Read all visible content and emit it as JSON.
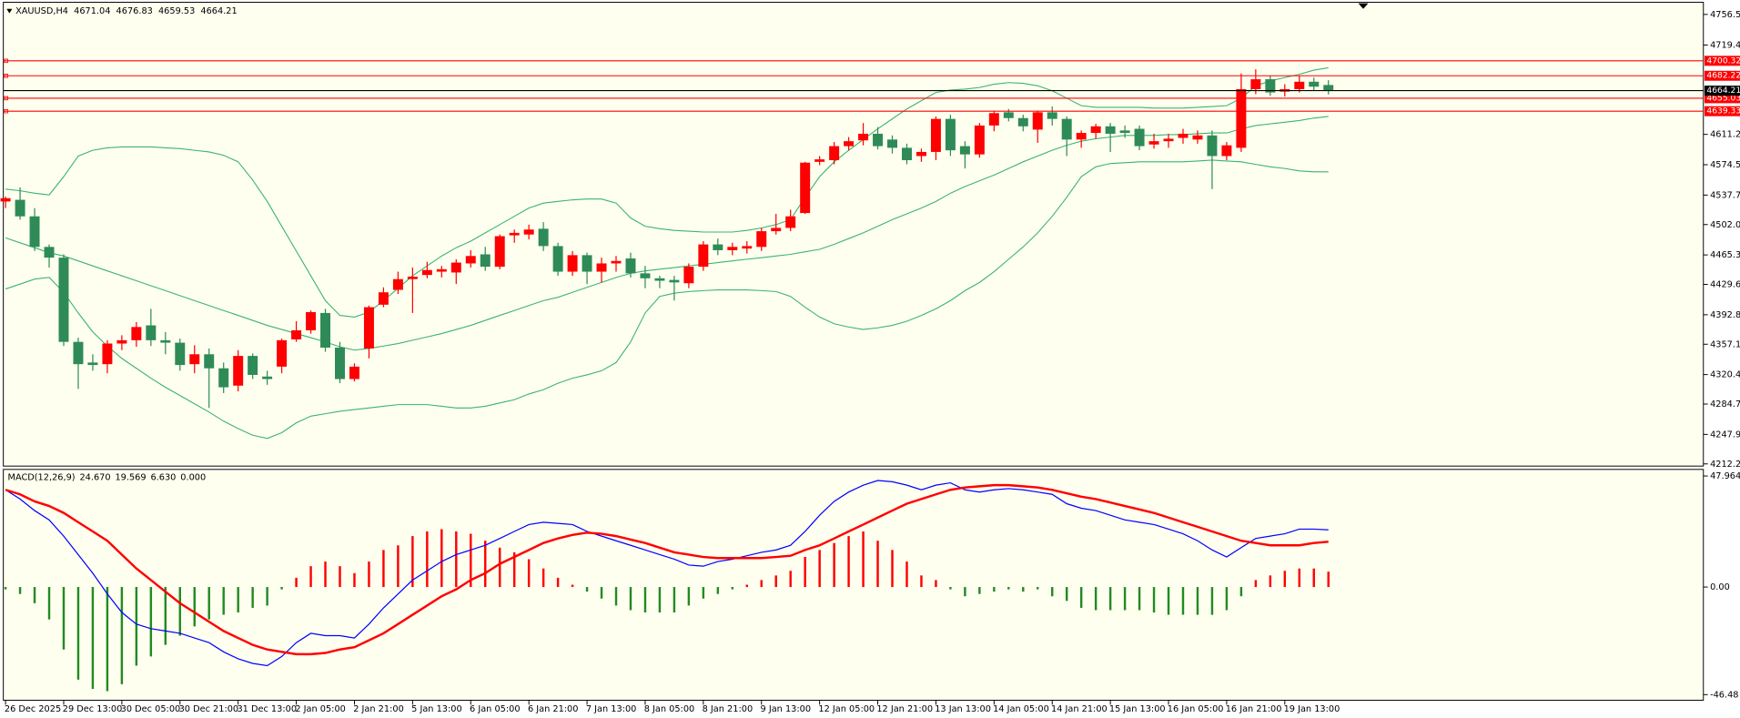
{
  "chart_data": [
    {
      "type": "candlestick",
      "title": "XAUUSD,H4",
      "categories": [
        "26 Dec 2025",
        null,
        null,
        null,
        "29 Dec 13:00",
        null,
        null,
        null,
        "30 Dec 05:00",
        null,
        null,
        null,
        "30 Dec 21:00",
        null,
        null,
        null,
        "31 Dec 13:00",
        null,
        null,
        null,
        "2 Jan 05:00",
        null,
        null,
        null,
        "2 Jan 21:00",
        null,
        null,
        null,
        "5 Jan 13:00",
        null,
        null,
        null,
        "6 Jan 05:00",
        null,
        null,
        null,
        "6 Jan 21:00",
        null,
        null,
        null,
        "7 Jan 13:00",
        null,
        null,
        null,
        "8 Jan 05:00",
        null,
        null,
        null,
        "8 Jan 21:00",
        null,
        null,
        null,
        "9 Jan 13:00",
        null,
        null,
        null,
        "12 Jan 05:00",
        null,
        null,
        null,
        "12 Jan 21:00",
        null,
        null,
        null,
        "13 Jan 13:00",
        null,
        null,
        null,
        "14 Jan 05:00",
        null,
        null,
        null,
        "14 Jan 21:00",
        null,
        null,
        null,
        "15 Jan 13:00",
        null,
        null,
        null,
        "16 Jan 05:00",
        null,
        null,
        null,
        "16 Jan 21:00",
        null,
        null,
        null,
        "19 Jan 13:00",
        null,
        null,
        null
      ],
      "open": [
        4530,
        4532,
        4512,
        4475,
        4462,
        4360,
        4335,
        4333,
        4358,
        4362,
        4380,
        4362,
        4359,
        4333,
        4345,
        4328,
        4307,
        4343,
        4318,
        4330,
        4363,
        4374,
        4395,
        4353,
        4315,
        4352,
        4405,
        4423,
        4436,
        4441,
        4445,
        4444,
        4455,
        4466,
        4451,
        4489,
        4490,
        4497,
        4476,
        4445,
        4465,
        4445,
        4455,
        4461,
        4443,
        4437,
        4435,
        4431,
        4451,
        4478,
        4471,
        4473,
        4475,
        4494,
        4498,
        4516,
        4578,
        4580,
        4597,
        4604,
        4612,
        4605,
        4595,
        4585,
        4590,
        4630,
        4597,
        4587,
        4622,
        4638,
        4631,
        4617,
        4638,
        4630,
        4605,
        4613,
        4621,
        4616,
        4618,
        4599,
        4603,
        4607,
        4605,
        4610,
        4585,
        4595,
        4666,
        4678,
        4663,
        4666,
        4675,
        4671.04
      ],
      "high": [
        4536,
        4547,
        4522,
        4478,
        4466,
        4365,
        4345,
        4362,
        4368,
        4384,
        4400,
        4372,
        4364,
        4356,
        4352,
        4335,
        4350,
        4346,
        4325,
        4364,
        4385,
        4398,
        4400,
        4360,
        4334,
        4404,
        4426,
        4445,
        4450,
        4457,
        4452,
        4460,
        4471,
        4475,
        4490,
        4496,
        4502,
        4505,
        4480,
        4470,
        4468,
        4462,
        4464,
        4468,
        4452,
        4440,
        4440,
        4455,
        4482,
        4485,
        4480,
        4482,
        4498,
        4515,
        4520,
        4578,
        4585,
        4602,
        4608,
        4625,
        4620,
        4610,
        4600,
        4594,
        4633,
        4635,
        4603,
        4625,
        4640,
        4642,
        4635,
        4640,
        4645,
        4633,
        4616,
        4624,
        4625,
        4622,
        4622,
        4612,
        4612,
        4618,
        4616,
        4616,
        4602,
        4685,
        4690,
        4682,
        4672,
        4682,
        4680,
        4676.83
      ],
      "low": [
        4522,
        4508,
        4470,
        4450,
        4355,
        4303,
        4325,
        4322,
        4350,
        4354,
        4355,
        4345,
        4325,
        4322,
        4280,
        4298,
        4300,
        4315,
        4308,
        4322,
        4360,
        4370,
        4348,
        4310,
        4312,
        4340,
        4402,
        4418,
        4395,
        4437,
        4438,
        4430,
        4450,
        4446,
        4448,
        4480,
        4484,
        4470,
        4440,
        4440,
        4430,
        4432,
        4445,
        4438,
        4425,
        4425,
        4410,
        4425,
        4446,
        4465,
        4465,
        4467,
        4470,
        4490,
        4494,
        4515,
        4574,
        4575,
        4592,
        4598,
        4593,
        4588,
        4575,
        4578,
        4580,
        4585,
        4570,
        4583,
        4615,
        4627,
        4615,
        4601,
        4622,
        4585,
        4595,
        4606,
        4590,
        4607,
        4592,
        4594,
        4595,
        4600,
        4600,
        4545,
        4580,
        4590,
        4660,
        4658,
        4657,
        4662,
        4664,
        4659.53
      ],
      "close": [
        4534,
        4512,
        4475,
        4462,
        4360,
        4333,
        4332,
        4358,
        4362,
        4378,
        4362,
        4359,
        4332,
        4345,
        4328,
        4305,
        4343,
        4320,
        4315,
        4362,
        4374,
        4396,
        4353,
        4315,
        4330,
        4402,
        4420,
        4436,
        4439,
        4447,
        4448,
        4456,
        4464,
        4451,
        4488,
        4492,
        4496,
        4476,
        4445,
        4465,
        4445,
        4455,
        4458,
        4443,
        4437,
        4434,
        4432,
        4451,
        4478,
        4471,
        4475,
        4476,
        4494,
        4498,
        4512,
        4577,
        4581,
        4597,
        4603,
        4612,
        4597,
        4595,
        4580,
        4590,
        4630,
        4592,
        4587,
        4622,
        4637,
        4631,
        4621,
        4638,
        4630,
        4605,
        4613,
        4621,
        4612,
        4613,
        4597,
        4603,
        4606,
        4612,
        4610,
        4585,
        4598,
        4666,
        4678,
        4662,
        4666,
        4675,
        4669,
        4664.21
      ],
      "up_color": "#ff0000",
      "down_color": "#2e8b57",
      "bands": [
        {
          "color": "#3cb371",
          "values": [
            4545,
            4543,
            4540,
            4538,
            4560,
            4585,
            4592,
            4595,
            4596,
            4596,
            4596,
            4595,
            4594,
            4592,
            4590,
            4586,
            4578,
            4556,
            4530,
            4500,
            4470,
            4440,
            4410,
            4392,
            4390,
            4396,
            4410,
            4425,
            4440,
            4452,
            4464,
            4474,
            4482,
            4492,
            4502,
            4512,
            4522,
            4528,
            4530,
            4532,
            4533,
            4533,
            4528,
            4510,
            4500,
            4497,
            4495,
            4494,
            4493,
            4493,
            4493,
            4495,
            4498,
            4502,
            4508,
            4535,
            4560,
            4578,
            4592,
            4605,
            4618,
            4630,
            4642,
            4652,
            4662,
            4665,
            4666,
            4668,
            4672,
            4674,
            4673,
            4670,
            4664,
            4655,
            4646,
            4644,
            4644,
            4644,
            4644,
            4643,
            4643,
            4643,
            4644,
            4645,
            4646,
            4655,
            4670,
            4676,
            4680,
            4684,
            4689,
            4692
          ]
        },
        {
          "color": "#3cb371",
          "values": [
            4486,
            4480,
            4474,
            4468,
            4464,
            4458,
            4452,
            4446,
            4440,
            4434,
            4428,
            4422,
            4416,
            4410,
            4404,
            4398,
            4392,
            4386,
            4380,
            4375,
            4370,
            4365,
            4360,
            4354,
            4350,
            4352,
            4355,
            4358,
            4362,
            4366,
            4370,
            4375,
            4380,
            4386,
            4392,
            4398,
            4404,
            4410,
            4414,
            4420,
            4426,
            4432,
            4438,
            4443,
            4446,
            4448,
            4450,
            4452,
            4454,
            4456,
            4458,
            4460,
            4462,
            4464,
            4466,
            4469,
            4472,
            4478,
            4485,
            4492,
            4500,
            4508,
            4515,
            4522,
            4530,
            4540,
            4548,
            4555,
            4562,
            4570,
            4578,
            4585,
            4592,
            4598,
            4603,
            4606,
            4608,
            4610,
            4610,
            4610,
            4611,
            4611,
            4612,
            4613,
            4613,
            4618,
            4622,
            4624,
            4626,
            4628,
            4631,
            4633
          ]
        },
        {
          "color": "#3cb371",
          "values": [
            4424,
            4430,
            4436,
            4438,
            4420,
            4395,
            4372,
            4355,
            4340,
            4328,
            4316,
            4305,
            4295,
            4285,
            4275,
            4264,
            4255,
            4247,
            4243,
            4250,
            4262,
            4270,
            4273,
            4276,
            4278,
            4280,
            4282,
            4284,
            4284,
            4284,
            4282,
            4280,
            4280,
            4282,
            4286,
            4290,
            4297,
            4302,
            4310,
            4316,
            4320,
            4325,
            4335,
            4360,
            4395,
            4415,
            4419,
            4421,
            4422,
            4423,
            4423,
            4423,
            4422,
            4421,
            4415,
            4402,
            4390,
            4382,
            4378,
            4375,
            4377,
            4380,
            4385,
            4392,
            4400,
            4410,
            4422,
            4432,
            4445,
            4460,
            4475,
            4492,
            4512,
            4535,
            4560,
            4572,
            4576,
            4577,
            4578,
            4578,
            4578,
            4578,
            4579,
            4580,
            4579,
            4578,
            4575,
            4572,
            4570,
            4567,
            4566,
            4566
          ]
        }
      ],
      "hlines": [
        4700.32,
        4682.22,
        4655.03,
        4639.33
      ],
      "hline_color": "#ff0000",
      "ylim": [
        4209.6,
        4769.9
      ],
      "yticks": [
        {
          "value": 4756.5,
          "label": "4756.50"
        },
        {
          "value": 4719.4,
          "label": "4719.40"
        },
        4611.25,
        {
          "value": 4574.5,
          "label": "4574.50"
        },
        4537.75,
        4502.05,
        {
          "value": 4465.3,
          "label": "4465.30"
        },
        {
          "value": 4429.6,
          "label": "4429.60"
        },
        4392.85,
        4357.15,
        {
          "value": 4320.4,
          "label": "4320.40"
        },
        {
          "value": 4284.7,
          "label": "4284.70"
        },
        4247.95,
        4212.25
      ]
    },
    {
      "type": "macd",
      "title": "MACD(12,26,9)",
      "readout": [
        "24.670",
        "19.569",
        "6.630",
        "0.000"
      ],
      "histogram": [
        -1,
        -3,
        -7,
        -14,
        -27,
        -40,
        -44,
        -45,
        -42,
        -34,
        -30,
        -25,
        -21,
        -17,
        -14,
        -12,
        -11,
        -9,
        -8,
        -1,
        4,
        9,
        11,
        9,
        6,
        11,
        16,
        18,
        22,
        24,
        25,
        24,
        23,
        20,
        17,
        15,
        12,
        8,
        4,
        1,
        -2,
        -5,
        -8,
        -10,
        -11,
        -11,
        -11,
        -8,
        -5,
        -3,
        -1,
        1,
        3,
        5,
        7,
        13,
        16,
        19,
        22,
        24,
        20,
        16,
        11,
        5,
        3,
        -1,
        -4,
        -3,
        -2,
        -1,
        -2,
        -1,
        -4,
        -6,
        -9,
        -10,
        -10,
        -10,
        -10,
        -11,
        -12,
        -12,
        -12,
        -12,
        -10,
        -4,
        3,
        5,
        7,
        8,
        8,
        6.63
      ],
      "up_color": "#ff0000",
      "down_color": "#228b22",
      "series": [
        {
          "color": "#0000ff",
          "values": [
            42,
            38,
            33,
            29,
            22,
            14,
            6,
            -3,
            -11,
            -16,
            -18,
            -19,
            -20,
            -22,
            -24,
            -28,
            -31,
            -33,
            -34,
            -30,
            -24,
            -20,
            -21,
            -21,
            -22,
            -16,
            -9,
            -3,
            3,
            7,
            11,
            14,
            16,
            18,
            21,
            24,
            27,
            28,
            27.5,
            27,
            24,
            22,
            20,
            18,
            16,
            14,
            12,
            9.5,
            9,
            11,
            12,
            13.5,
            15,
            16,
            18,
            24,
            31,
            37,
            41,
            44,
            46,
            45.5,
            44,
            42,
            44,
            45,
            42,
            41,
            42,
            42.5,
            42,
            41,
            40,
            36,
            34,
            33,
            31,
            29,
            28,
            27,
            25,
            23,
            20,
            16,
            13,
            17,
            21,
            22,
            23,
            25,
            25,
            24.67
          ]
        },
        {
          "color": "#ff0000",
          "values": [
            42,
            40,
            37,
            35,
            32,
            28,
            24,
            20,
            14,
            8,
            3,
            -2,
            -7,
            -11,
            -15,
            -19,
            -22,
            -25,
            -27,
            -28,
            -29,
            -29,
            -28.5,
            -27,
            -26,
            -23,
            -20,
            -16,
            -12,
            -8,
            -4,
            -1,
            3,
            6,
            10,
            13,
            16,
            19,
            21,
            22.5,
            23.5,
            23,
            22,
            20.5,
            19,
            17,
            15,
            14,
            13,
            12.5,
            12.5,
            12.5,
            12.5,
            13,
            13.5,
            16,
            18,
            21,
            24,
            27,
            30,
            33,
            36,
            38,
            40,
            42,
            43,
            43.5,
            44,
            44,
            43.5,
            43,
            42,
            40.5,
            39,
            38,
            36.5,
            35,
            33.5,
            32,
            30,
            28,
            26,
            24,
            22,
            20,
            19,
            18,
            18,
            18,
            19,
            19.569
          ]
        }
      ],
      "ylim": [
        -48.9,
        50.8
      ],
      "yticks": [
        47.964,
        {
          "value": 0,
          "label": "0.00"
        },
        -46.48
      ]
    }
  ]
}
